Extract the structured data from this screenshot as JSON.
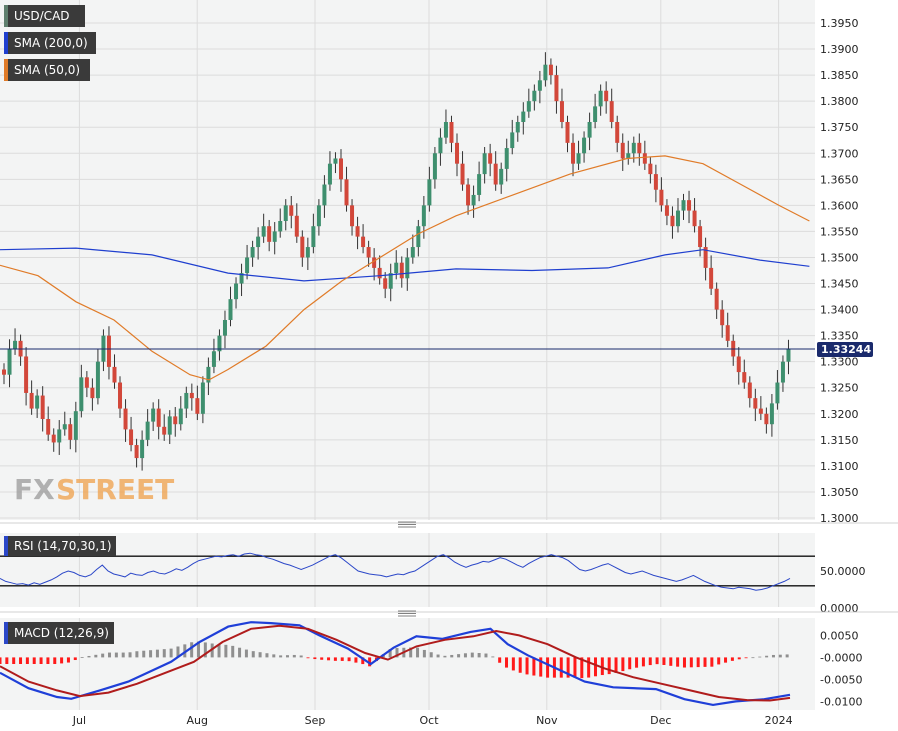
{
  "chart_data": [
    {
      "type": "candlestick",
      "legend": [
        {
          "label": "USD/CAD",
          "color": "#5f7f6e"
        },
        {
          "label": "SMA (200,0)",
          "color": "#1f3fcf"
        },
        {
          "label": "SMA (50,0)",
          "color": "#e07b28"
        }
      ],
      "y_ticks": [
        "1.3950",
        "1.3900",
        "1.3850",
        "1.3800",
        "1.3750",
        "1.3700",
        "1.3650",
        "1.3600",
        "1.3550",
        "1.3500",
        "1.3450",
        "1.3400",
        "1.3350",
        "1.3300",
        "1.3250",
        "1.3200",
        "1.3150",
        "1.3100",
        "1.3050",
        "1.3000"
      ],
      "ylim": [
        1.3,
        1.395
      ],
      "last_price_label": "1.33244",
      "last_price": 1.33244,
      "x_ticks": [
        {
          "label": "Jul",
          "day": 13
        },
        {
          "label": "Aug",
          "day": 44
        },
        {
          "label": "Sep",
          "day": 75
        },
        {
          "label": "Oct",
          "day": 105
        },
        {
          "label": "Nov",
          "day": 136
        },
        {
          "label": "Dec",
          "day": 166
        },
        {
          "label": "2024",
          "day": 197
        }
      ],
      "candle_closes": [
        1.3275,
        1.3325,
        1.334,
        1.331,
        1.324,
        1.321,
        1.3235,
        1.319,
        1.316,
        1.3145,
        1.317,
        1.318,
        1.315,
        1.3205,
        1.327,
        1.325,
        1.323,
        1.33,
        1.335,
        1.329,
        1.326,
        1.321,
        1.317,
        1.314,
        1.3115,
        1.315,
        1.3185,
        1.321,
        1.3175,
        1.316,
        1.3195,
        1.318,
        1.321,
        1.324,
        1.323,
        1.32,
        1.326,
        1.329,
        1.332,
        1.335,
        1.338,
        1.342,
        1.345,
        1.347,
        1.35,
        1.352,
        1.354,
        1.356,
        1.353,
        1.355,
        1.357,
        1.36,
        1.358,
        1.354,
        1.35,
        1.352,
        1.356,
        1.36,
        1.364,
        1.368,
        1.369,
        1.365,
        1.36,
        1.356,
        1.354,
        1.352,
        1.35,
        1.348,
        1.346,
        1.344,
        1.347,
        1.349,
        1.346,
        1.35,
        1.352,
        1.356,
        1.36,
        1.365,
        1.37,
        1.373,
        1.376,
        1.372,
        1.368,
        1.364,
        1.36,
        1.362,
        1.366,
        1.37,
        1.368,
        1.364,
        1.367,
        1.371,
        1.374,
        1.376,
        1.378,
        1.38,
        1.382,
        1.384,
        1.387,
        1.385,
        1.38,
        1.376,
        1.372,
        1.368,
        1.37,
        1.373,
        1.376,
        1.379,
        1.382,
        1.38,
        1.376,
        1.372,
        1.369,
        1.37,
        1.372,
        1.37,
        1.368,
        1.366,
        1.363,
        1.36,
        1.358,
        1.356,
        1.359,
        1.361,
        1.359,
        1.356,
        1.352,
        1.348,
        1.344,
        1.34,
        1.337,
        1.334,
        1.331,
        1.328,
        1.326,
        1.323,
        1.321,
        1.32,
        1.318,
        1.322,
        1.326,
        1.33,
        1.3324
      ],
      "sma200_points": [
        [
          0,
          1.3515
        ],
        [
          20,
          1.3518
        ],
        [
          40,
          1.3505
        ],
        [
          60,
          1.347
        ],
        [
          80,
          1.3455
        ],
        [
          100,
          1.3465
        ],
        [
          120,
          1.3478
        ],
        [
          140,
          1.3475
        ],
        [
          160,
          1.348
        ],
        [
          175,
          1.3505
        ],
        [
          185,
          1.3515
        ],
        [
          200,
          1.3495
        ],
        [
          213,
          1.3483
        ]
      ],
      "sma50_points": [
        [
          0,
          1.3485
        ],
        [
          10,
          1.3465
        ],
        [
          20,
          1.3415
        ],
        [
          30,
          1.338
        ],
        [
          40,
          1.332
        ],
        [
          50,
          1.3275
        ],
        [
          55,
          1.3265
        ],
        [
          60,
          1.3285
        ],
        [
          70,
          1.333
        ],
        [
          80,
          1.34
        ],
        [
          90,
          1.3455
        ],
        [
          100,
          1.35
        ],
        [
          110,
          1.3545
        ],
        [
          120,
          1.358
        ],
        [
          135,
          1.362
        ],
        [
          150,
          1.366
        ],
        [
          165,
          1.369
        ],
        [
          175,
          1.3695
        ],
        [
          185,
          1.368
        ],
        [
          195,
          1.364
        ],
        [
          205,
          1.36
        ],
        [
          213,
          1.357
        ]
      ]
    },
    {
      "type": "line",
      "label": "RSI (14,70,30,1)",
      "y_ticks": [
        "50.0000",
        "0.0000"
      ],
      "ylim": [
        0,
        100
      ],
      "levels": [
        70,
        30
      ],
      "values": [
        40,
        36,
        34,
        32,
        33,
        31,
        34,
        32,
        35,
        38,
        42,
        47,
        50,
        48,
        44,
        42,
        45,
        52,
        58,
        50,
        46,
        44,
        42,
        47,
        45,
        44,
        48,
        50,
        47,
        46,
        49,
        53,
        51,
        55,
        60,
        64,
        66,
        68,
        70,
        69,
        71,
        72,
        70,
        73,
        74,
        72,
        71,
        68,
        66,
        63,
        60,
        58,
        55,
        52,
        55,
        58,
        62,
        66,
        70,
        72,
        68,
        62,
        56,
        50,
        48,
        46,
        45,
        44,
        42,
        44,
        46,
        45,
        48,
        50,
        55,
        60,
        65,
        70,
        72,
        68,
        62,
        58,
        55,
        58,
        60,
        63,
        62,
        65,
        68,
        66,
        62,
        58,
        55,
        60,
        64,
        68,
        70,
        72,
        70,
        68,
        64,
        58,
        52,
        50,
        52,
        55,
        58,
        60,
        56,
        52,
        48,
        46,
        48,
        50,
        47,
        44,
        42,
        40,
        38,
        36,
        38,
        41,
        44,
        40,
        36,
        33,
        30,
        28,
        27,
        26,
        28,
        27,
        26,
        24,
        25,
        27,
        30,
        33,
        36,
        40
      ]
    },
    {
      "type": "bar+line",
      "label": "MACD (12,26,9)",
      "y_ticks": [
        "0.0050",
        "-0.0000",
        "-0.0050",
        "-0.0100"
      ],
      "ylim": [
        -0.0115,
        0.0085
      ],
      "macd_points": [
        [
          0,
          -0.0035
        ],
        [
          10,
          -0.007
        ],
        [
          20,
          -0.009
        ],
        [
          25,
          -0.0094
        ],
        [
          35,
          -0.0075
        ],
        [
          45,
          -0.0055
        ],
        [
          50,
          -0.004
        ],
        [
          60,
          -0.001
        ],
        [
          70,
          0.0035
        ],
        [
          80,
          0.007
        ],
        [
          88,
          0.008
        ],
        [
          95,
          0.0078
        ],
        [
          105,
          0.0073
        ],
        [
          112,
          0.005
        ],
        [
          122,
          0.002
        ],
        [
          130,
          -0.0015
        ],
        [
          138,
          0.0022
        ],
        [
          146,
          0.0048
        ],
        [
          155,
          0.0042
        ],
        [
          165,
          0.0058
        ],
        [
          172,
          0.0065
        ],
        [
          178,
          0.003
        ],
        [
          185,
          0.0005
        ],
        [
          195,
          -0.0025
        ],
        [
          205,
          -0.0055
        ],
        [
          215,
          -0.0068
        ],
        [
          230,
          -0.0072
        ],
        [
          240,
          -0.0095
        ],
        [
          250,
          -0.0108
        ],
        [
          258,
          -0.01
        ],
        [
          268,
          -0.0095
        ],
        [
          277,
          -0.0085
        ]
      ],
      "signal_points": [
        [
          0,
          -0.002
        ],
        [
          10,
          -0.0055
        ],
        [
          20,
          -0.0075
        ],
        [
          28,
          -0.0088
        ],
        [
          38,
          -0.008
        ],
        [
          48,
          -0.006
        ],
        [
          58,
          -0.0035
        ],
        [
          68,
          -0.001
        ],
        [
          78,
          0.0035
        ],
        [
          88,
          0.0065
        ],
        [
          98,
          0.0072
        ],
        [
          108,
          0.0065
        ],
        [
          118,
          0.004
        ],
        [
          128,
          0.001
        ],
        [
          136,
          -0.0005
        ],
        [
          146,
          0.0025
        ],
        [
          156,
          0.004
        ],
        [
          166,
          0.0048
        ],
        [
          174,
          0.006
        ],
        [
          182,
          0.005
        ],
        [
          192,
          0.003
        ],
        [
          202,
          0.0
        ],
        [
          212,
          -0.0025
        ],
        [
          222,
          -0.0045
        ],
        [
          232,
          -0.006
        ],
        [
          242,
          -0.0075
        ],
        [
          252,
          -0.009
        ],
        [
          262,
          -0.0097
        ],
        [
          270,
          -0.0098
        ],
        [
          277,
          -0.0092
        ]
      ]
    }
  ],
  "logo": {
    "fx": "FX",
    "street": "STREET"
  }
}
